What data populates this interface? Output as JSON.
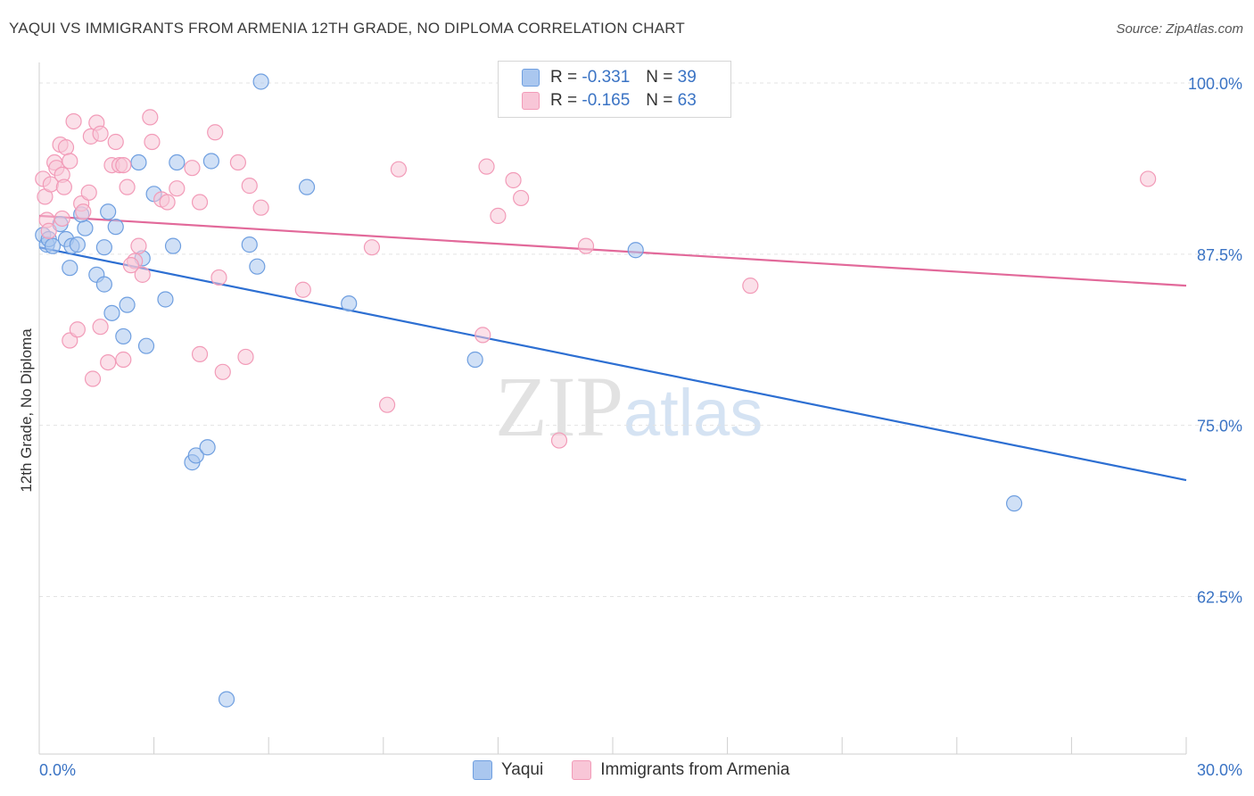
{
  "title": "YAQUI VS IMMIGRANTS FROM ARMENIA 12TH GRADE, NO DIPLOMA CORRELATION CHART",
  "source": "Source: ZipAtlas.com",
  "watermark": {
    "zip": "ZIP",
    "atlas": "atlas"
  },
  "legend": {
    "rows": [
      {
        "r_label": "R =",
        "r_value": "-0.331",
        "n_label": "N =",
        "n_value": "39"
      },
      {
        "r_label": "R =",
        "r_value": "-0.165",
        "n_label": "N =",
        "n_value": "63"
      }
    ]
  },
  "chart_data": {
    "type": "scatter",
    "title": "YAQUI VS IMMIGRANTS FROM ARMENIA 12TH GRADE, NO DIPLOMA CORRELATION CHART",
    "xlabel": "",
    "ylabel": "12th Grade, No Diploma",
    "xlim": [
      0,
      30
    ],
    "ylim": [
      51,
      101.5
    ],
    "x_tick_labels": [
      "0.0%",
      "30.0%"
    ],
    "y_ticks": [
      100,
      87.5,
      75,
      62.5
    ],
    "y_tick_labels": [
      "100.0%",
      "87.5%",
      "75.0%",
      "62.5%"
    ],
    "grid": true,
    "legend_position": "top-center",
    "series": [
      {
        "name": "Yaqui",
        "color": "#6f9fe0",
        "fill": "#aac7ef",
        "trend_color": "#2d6fd2",
        "trend": {
          "x": [
            0,
            30
          ],
          "y": [
            88.0,
            71.0
          ]
        },
        "points": [
          [
            0.1,
            88.9
          ],
          [
            0.2,
            88.2
          ],
          [
            0.25,
            88.6
          ],
          [
            0.35,
            88.1
          ],
          [
            0.55,
            89.7
          ],
          [
            0.7,
            88.6
          ],
          [
            0.85,
            88.1
          ],
          [
            1.0,
            88.2
          ],
          [
            0.8,
            86.5
          ],
          [
            1.2,
            89.4
          ],
          [
            1.1,
            90.4
          ],
          [
            1.8,
            90.6
          ],
          [
            2.0,
            89.5
          ],
          [
            1.5,
            86.0
          ],
          [
            1.7,
            85.3
          ],
          [
            1.9,
            83.2
          ],
          [
            2.2,
            81.5
          ],
          [
            2.3,
            83.8
          ],
          [
            2.7,
            87.2
          ],
          [
            2.8,
            80.8
          ],
          [
            2.6,
            94.2
          ],
          [
            3.0,
            91.9
          ],
          [
            3.3,
            84.2
          ],
          [
            3.5,
            88.1
          ],
          [
            3.6,
            94.2
          ],
          [
            4.5,
            94.3
          ],
          [
            5.5,
            88.2
          ],
          [
            5.7,
            86.6
          ],
          [
            4.0,
            72.3
          ],
          [
            4.1,
            72.8
          ],
          [
            4.4,
            73.4
          ],
          [
            4.9,
            55.0
          ],
          [
            5.8,
            100.1
          ],
          [
            7.0,
            92.4
          ],
          [
            8.1,
            83.9
          ],
          [
            11.4,
            79.8
          ],
          [
            15.6,
            87.8
          ],
          [
            25.5,
            69.3
          ],
          [
            1.7,
            88.0
          ]
        ]
      },
      {
        "name": "Immigrants from Armenia",
        "color": "#f29bb8",
        "fill": "#f8c6d7",
        "trend_color": "#e2699a",
        "trend": {
          "x": [
            0,
            30
          ],
          "y": [
            90.3,
            85.2
          ]
        },
        "points": [
          [
            0.1,
            93.0
          ],
          [
            0.15,
            91.7
          ],
          [
            0.2,
            90.0
          ],
          [
            0.3,
            92.6
          ],
          [
            0.25,
            89.2
          ],
          [
            0.4,
            94.2
          ],
          [
            0.45,
            93.8
          ],
          [
            0.55,
            95.5
          ],
          [
            0.6,
            93.3
          ],
          [
            0.65,
            92.4
          ],
          [
            0.7,
            95.3
          ],
          [
            0.8,
            94.3
          ],
          [
            0.6,
            90.1
          ],
          [
            0.9,
            97.2
          ],
          [
            1.1,
            91.2
          ],
          [
            1.15,
            90.6
          ],
          [
            1.3,
            92.0
          ],
          [
            1.35,
            96.1
          ],
          [
            1.5,
            97.1
          ],
          [
            1.6,
            96.3
          ],
          [
            1.9,
            94.0
          ],
          [
            2.0,
            95.7
          ],
          [
            2.1,
            94.0
          ],
          [
            2.2,
            94.0
          ],
          [
            2.3,
            92.4
          ],
          [
            2.5,
            87.0
          ],
          [
            2.6,
            88.1
          ],
          [
            2.7,
            86.0
          ],
          [
            2.9,
            97.5
          ],
          [
            2.95,
            95.7
          ],
          [
            3.2,
            91.5
          ],
          [
            3.35,
            91.3
          ],
          [
            3.6,
            92.3
          ],
          [
            4.0,
            93.8
          ],
          [
            4.2,
            91.3
          ],
          [
            4.6,
            96.4
          ],
          [
            4.7,
            85.8
          ],
          [
            5.2,
            94.2
          ],
          [
            5.5,
            92.5
          ],
          [
            5.8,
            90.9
          ],
          [
            0.8,
            81.2
          ],
          [
            1.0,
            82.0
          ],
          [
            1.4,
            78.4
          ],
          [
            1.6,
            82.2
          ],
          [
            1.8,
            79.6
          ],
          [
            2.2,
            79.8
          ],
          [
            2.4,
            86.7
          ],
          [
            4.2,
            80.2
          ],
          [
            4.8,
            78.9
          ],
          [
            5.4,
            80.0
          ],
          [
            6.9,
            84.9
          ],
          [
            8.7,
            88.0
          ],
          [
            9.1,
            76.5
          ],
          [
            9.4,
            93.7
          ],
          [
            11.6,
            81.6
          ],
          [
            11.7,
            93.9
          ],
          [
            12.0,
            90.3
          ],
          [
            12.4,
            92.9
          ],
          [
            12.6,
            91.6
          ],
          [
            13.6,
            73.9
          ],
          [
            14.3,
            88.1
          ],
          [
            18.6,
            85.2
          ],
          [
            29.0,
            93.0
          ]
        ]
      }
    ]
  }
}
